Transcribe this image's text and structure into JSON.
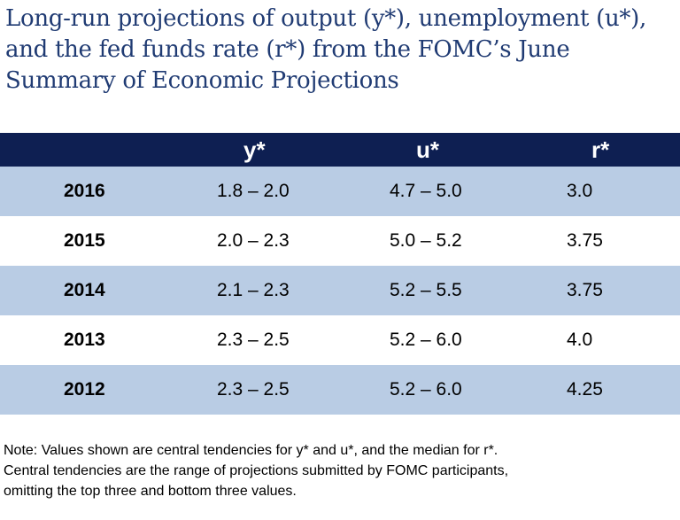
{
  "title": "Long-run projections of output (y*), unemployment (u*), and the fed funds rate (r*) from the FOMC’s June Summary of Economic Projections",
  "table": {
    "headers": [
      "",
      "y*",
      "u*",
      "r*"
    ],
    "rows": [
      {
        "year": "2016",
        "y": "1.8 – 2.0",
        "u": "4.7 – 5.0",
        "r": "3.0"
      },
      {
        "year": "2015",
        "y": "2.0 – 2.3",
        "u": "5.0 – 5.2",
        "r": "3.75"
      },
      {
        "year": "2014",
        "y": "2.1 – 2.3",
        "u": "5.2 – 5.5",
        "r": "3.75"
      },
      {
        "year": "2013",
        "y": "2.3 – 2.5",
        "u": "5.2 – 6.0",
        "r": "4.0"
      },
      {
        "year": "2012",
        "y": "2.3 – 2.5",
        "u": "5.2 – 6.0",
        "r": "4.25"
      }
    ]
  },
  "note_lines": [
    "Note:  Values shown are central tendencies for y* and u*, and the median for r*.",
    "Central tendencies are the range of projections submitted by FOMC participants,",
    "omitting the top three and bottom three values."
  ],
  "colors": {
    "title": "#203b73",
    "header_bg": "#0e1f52",
    "shaded_row": "#b9cce4"
  }
}
